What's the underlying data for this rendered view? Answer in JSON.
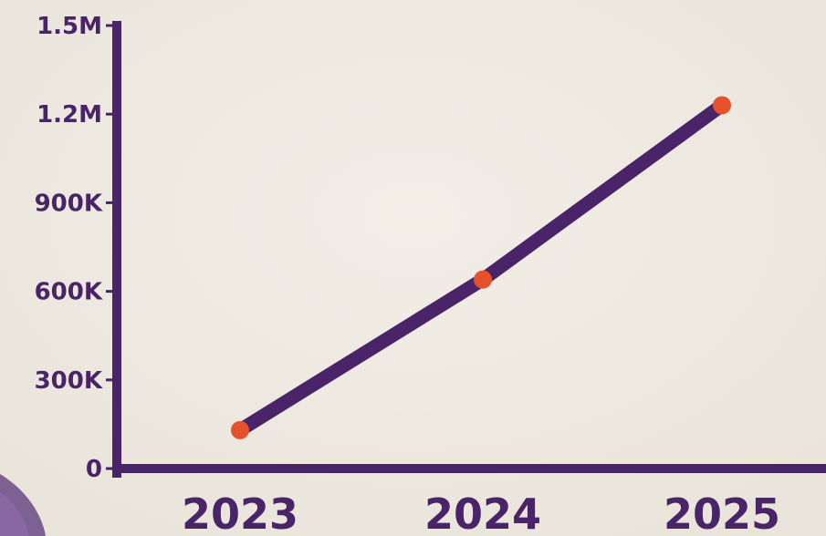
{
  "chart_data": {
    "type": "line",
    "categories": [
      "2023",
      "2024",
      "2025"
    ],
    "series": [
      {
        "values": [
          130000,
          640000,
          1230000
        ]
      }
    ],
    "y_ticks": [
      "0",
      "300K",
      "600K",
      "900K",
      "1.2M",
      "1.5M"
    ],
    "y_tick_values": [
      0,
      300000,
      600000,
      900000,
      1200000,
      1500000
    ],
    "ylim": [
      0,
      1500000
    ],
    "title": "",
    "xlabel": "",
    "ylabel": "",
    "grid": false,
    "legend": "none"
  },
  "colors": {
    "background": "#efebe3",
    "axis": "#4a2468",
    "line": "#4a2468",
    "marker": "#e4512b",
    "text": "#4a2468"
  }
}
